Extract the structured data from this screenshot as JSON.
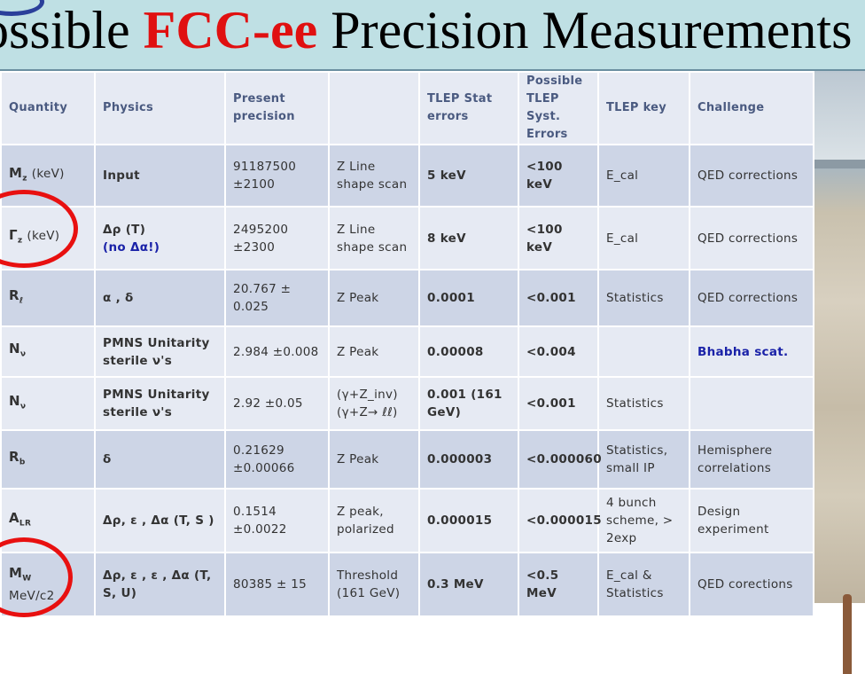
{
  "title": {
    "prefix": "ossible ",
    "highlight": "FCC-ee",
    "suffix": " Precision Measurements"
  },
  "headers": [
    "Quantity",
    "Physics",
    "Present precision",
    "",
    "TLEP Stat  errors",
    "Possible TLEP Syst. Errors",
    "TLEP key",
    "Challenge"
  ],
  "rows": [
    {
      "quantity": "M",
      "sub": "z",
      "unit": "(keV)",
      "physics": "Input",
      "physics_note": "",
      "precision": "91187500 ±2100",
      "method": "Z Line shape scan",
      "stat": "5 keV",
      "syst": "<100 keV",
      "key": "E_cal",
      "challenge": "QED corrections"
    },
    {
      "quantity": "Γ",
      "sub": "z",
      "unit": "(keV)",
      "physics": "Δρ (T)",
      "physics_note": "(no Δα!)",
      "precision": "2495200 ±2300",
      "method": "Z Line shape scan",
      "stat": "8 keV",
      "syst": "<100 keV",
      "key": "E_cal",
      "challenge": "QED corrections"
    },
    {
      "quantity": "R",
      "sub": "ℓ",
      "unit": "",
      "physics": "α  , δ",
      "physics_note": "",
      "precision": "20.767 ± 0.025",
      "method": "Z Peak",
      "stat": "0.0001",
      "syst": "<0.001",
      "key": "Statistics",
      "challenge": "QED corrections"
    },
    {
      "quantity": "N",
      "sub": "ν",
      "unit": "",
      "physics": "PMNS Unitarity sterile ν's",
      "physics_note": "",
      "precision": "2.984 ±0.008",
      "method": "Z Peak",
      "stat": "0.00008",
      "syst": "<0.004",
      "key": "",
      "challenge": "Bhabha scat."
    },
    {
      "quantity": "N",
      "sub": "ν",
      "unit": "",
      "physics": "PMNS Unitarity sterile ν's",
      "physics_note": "",
      "precision": "2.92  ±0.05",
      "method": "(γ+Z_inv) (γ+Z→ ℓℓ)",
      "stat": "0.001 (161 GeV)",
      "syst": "<0.001",
      "key": "Statistics",
      "challenge": ""
    },
    {
      "quantity": "R",
      "sub": "b",
      "unit": "",
      "physics": "δ",
      "physics_note": "",
      "precision": "0.21629 ±0.00066",
      "method": "Z Peak",
      "stat": "0.000003",
      "syst": "<0.000060",
      "key": "Statistics, small IP",
      "challenge": "Hemisphere correlations"
    },
    {
      "quantity": "A",
      "sub": "LR",
      "unit": "",
      "physics": "Δρ, ε , Δα (T, S )",
      "physics_note": "",
      "precision": "0.1514 ±0.0022",
      "method": "Z peak, polarized",
      "stat": "0.000015",
      "syst": "<0.000015",
      "key": "4 bunch scheme, > 2exp",
      "challenge": "Design experiment"
    },
    {
      "quantity": "M",
      "sub": "W",
      "unit": "MeV/c2",
      "physics": "Δρ, ε , ε , Δα (T, S, U)",
      "physics_note": "",
      "precision": "80385  ± 15",
      "method": "Threshold (161 GeV)",
      "stat": "0.3 MeV",
      "syst": "<0.5 MeV",
      "key": "E_cal & Statistics",
      "challenge": "QED corections"
    }
  ]
}
